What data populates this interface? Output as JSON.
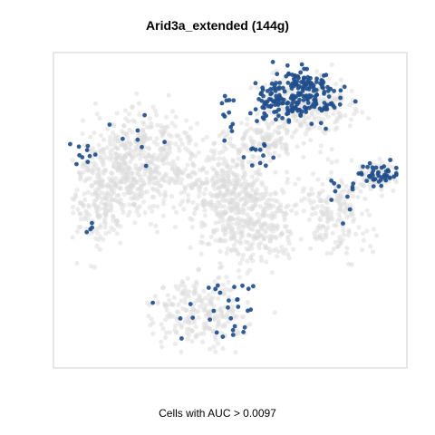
{
  "chart_data": {
    "type": "scatter",
    "title": "Arid3a_extended (144g)",
    "xlabel": "Cells with AUC > 0.0097",
    "ylabel": "",
    "xlim": [
      0,
      100
    ],
    "ylim": [
      0,
      100
    ],
    "axes_shown": false,
    "grid": false,
    "legend": "none",
    "colors": {
      "background_cells": "#dcdcdc",
      "high_auc_cells": "#1f4e8c",
      "frame": "#cccccc"
    },
    "background_clusters": [
      {
        "cx": 26,
        "cy": 64,
        "rx": 16,
        "ry": 16,
        "n": 520
      },
      {
        "cx": 13,
        "cy": 54,
        "rx": 9,
        "ry": 17,
        "n": 180
      },
      {
        "cx": 48,
        "cy": 55,
        "rx": 11,
        "ry": 18,
        "n": 330
      },
      {
        "cx": 58,
        "cy": 47,
        "rx": 10,
        "ry": 15,
        "n": 260
      },
      {
        "cx": 72,
        "cy": 83,
        "rx": 13,
        "ry": 10,
        "n": 260
      },
      {
        "cx": 80,
        "cy": 50,
        "rx": 9,
        "ry": 15,
        "n": 180
      },
      {
        "cx": 92,
        "cy": 61,
        "rx": 6,
        "ry": 5,
        "n": 70
      },
      {
        "cx": 42,
        "cy": 18,
        "rx": 14,
        "ry": 11,
        "n": 230
      },
      {
        "cx": 60,
        "cy": 72,
        "rx": 8,
        "ry": 7,
        "n": 100
      }
    ],
    "high_auc_clusters": [
      {
        "cx": 70,
        "cy": 87,
        "rx": 11,
        "ry": 8,
        "n": 200
      },
      {
        "cx": 62,
        "cy": 83,
        "rx": 6,
        "ry": 6,
        "n": 25
      },
      {
        "cx": 92,
        "cy": 61,
        "rx": 6,
        "ry": 4,
        "n": 45
      },
      {
        "cx": 58,
        "cy": 67,
        "rx": 5,
        "ry": 6,
        "n": 12
      },
      {
        "cx": 49,
        "cy": 82,
        "rx": 4,
        "ry": 10,
        "n": 12
      },
      {
        "cx": 47,
        "cy": 18,
        "rx": 14,
        "ry": 9,
        "n": 30
      },
      {
        "cx": 8,
        "cy": 67,
        "rx": 4,
        "ry": 6,
        "n": 10
      },
      {
        "cx": 80,
        "cy": 56,
        "rx": 6,
        "ry": 8,
        "n": 10
      },
      {
        "cx": 24,
        "cy": 70,
        "rx": 6,
        "ry": 10,
        "n": 8
      },
      {
        "cx": 10,
        "cy": 45,
        "rx": 3,
        "ry": 8,
        "n": 4
      }
    ]
  }
}
